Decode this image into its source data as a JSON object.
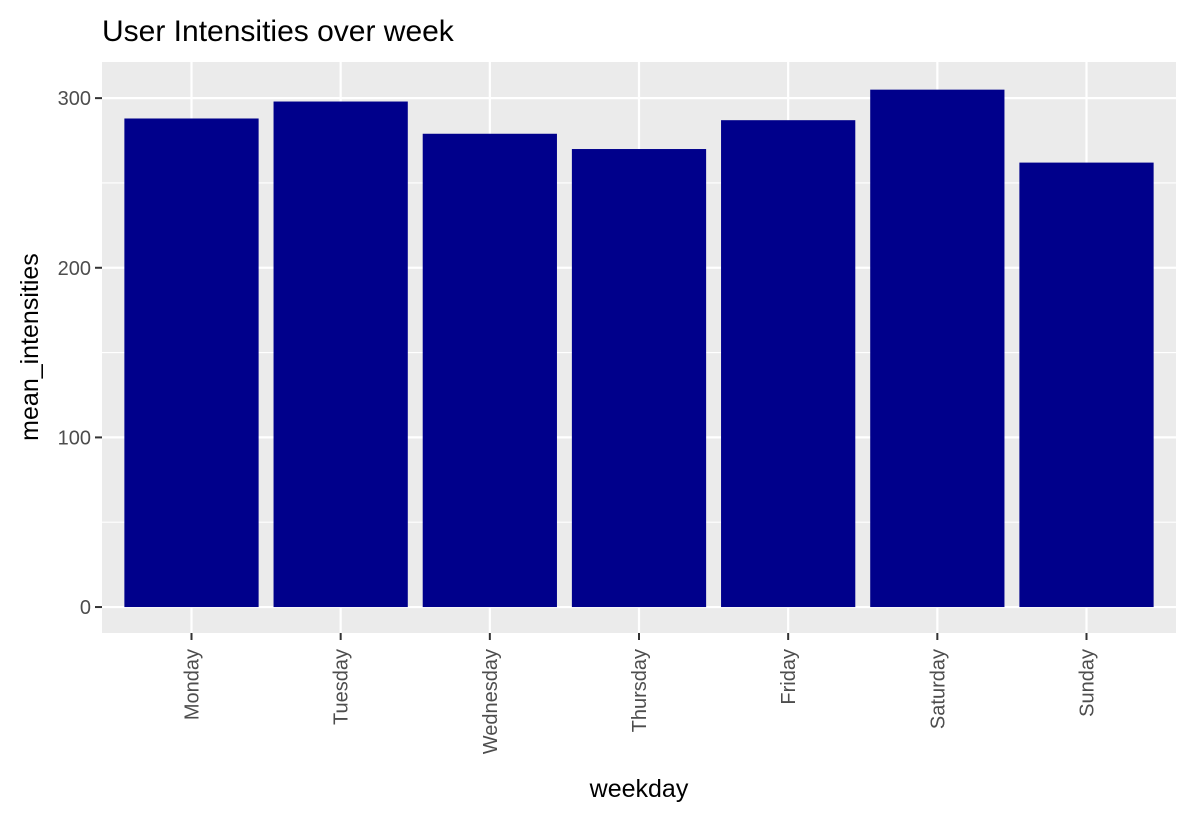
{
  "chart_data": {
    "type": "bar",
    "title": "User Intensities over week",
    "xlabel": "weekday",
    "ylabel": "mean_intensities",
    "categories": [
      "Monday",
      "Tuesday",
      "Wednesday",
      "Thursday",
      "Friday",
      "Saturday",
      "Sunday"
    ],
    "values": [
      288,
      298,
      279,
      270,
      287,
      305,
      262
    ],
    "yticks": [
      0,
      100,
      200,
      300
    ],
    "ylim": [
      -15.3,
      321.3
    ],
    "grid": true,
    "legend": "none",
    "colors": {
      "bar": "#00008B",
      "panel": "#EBEBEB",
      "grid": "#FFFFFF",
      "tick": "#333333",
      "tick_label": "#4D4D4D"
    }
  }
}
